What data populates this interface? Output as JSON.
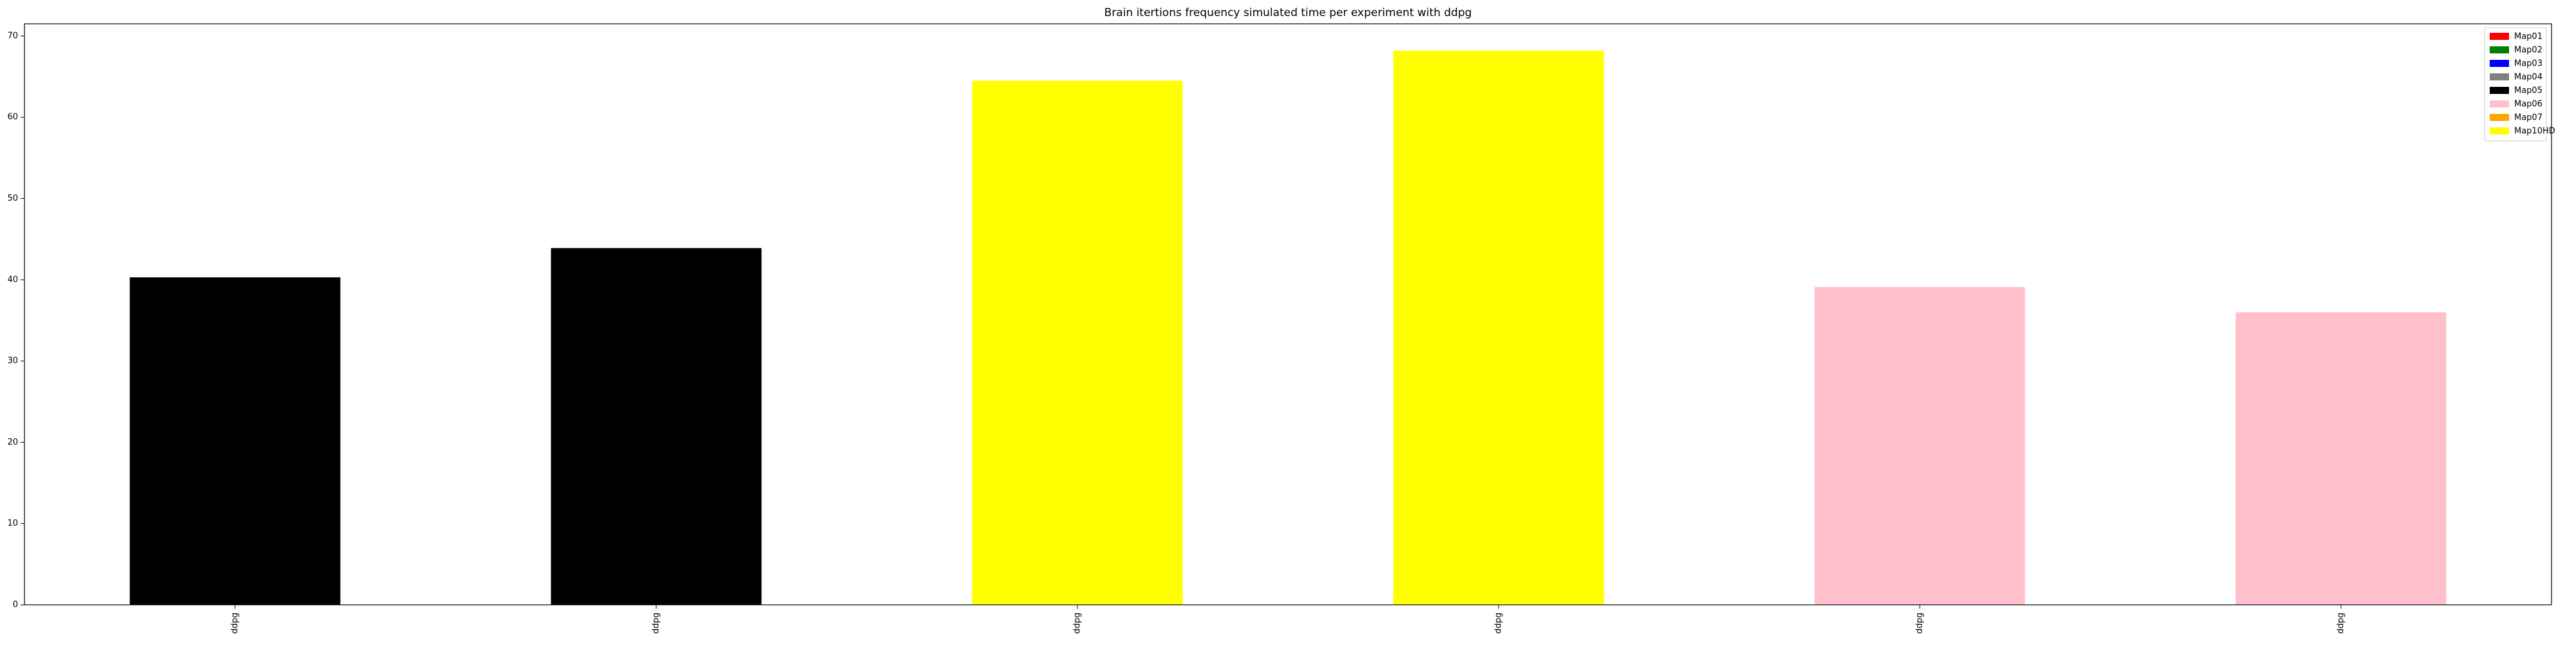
{
  "chart_data": {
    "type": "bar",
    "title": "Brain itertions frequency simulated time per experiment with ddpg",
    "xlabel": "",
    "ylabel": "",
    "categories": [
      "ddpg",
      "ddpg",
      "ddpg",
      "ddpg",
      "ddpg",
      "ddpg"
    ],
    "values": [
      40.3,
      43.9,
      64.5,
      68.2,
      39.1,
      36.0
    ],
    "bar_colors": [
      "#000000",
      "#000000",
      "#ffff00",
      "#ffff00",
      "#ffc0cb",
      "#ffc0cb"
    ],
    "ylim": [
      0,
      71.5
    ],
    "yticks": [
      0,
      10,
      20,
      30,
      40,
      50,
      60,
      70
    ],
    "grid": false,
    "legend": {
      "placement": "top-right",
      "entries": [
        {
          "label": "Map01",
          "color": "#ff0000"
        },
        {
          "label": "Map02",
          "color": "#008000"
        },
        {
          "label": "Map03",
          "color": "#0000ff"
        },
        {
          "label": "Map04",
          "color": "#808080"
        },
        {
          "label": "Map05",
          "color": "#000000"
        },
        {
          "label": "Map06",
          "color": "#ffc0cb"
        },
        {
          "label": "Map07",
          "color": "#ffa500"
        },
        {
          "label": "Map10HD",
          "color": "#ffff00"
        }
      ]
    }
  }
}
